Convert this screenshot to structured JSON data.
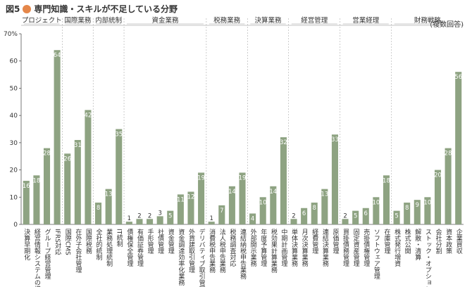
{
  "chart_data": {
    "type": "bar",
    "figure_label": "図5",
    "title": "専門知識・スキルが不足している分野",
    "note": "(複数回答)",
    "ylim": [
      0,
      70
    ],
    "yticks": [
      0,
      10,
      20,
      30,
      40,
      50,
      60,
      70
    ],
    "ytick_labels": [
      "0",
      "10",
      "20",
      "30",
      "40",
      "50",
      "60",
      "70%"
    ],
    "bar_color": "#8ea382",
    "groups": [
      {
        "name": "プロジェクト",
        "categories": [
          "決算早期化",
          "経営情報システムの構築",
          "グループ経営管理",
          "IFRS対応"
        ],
        "values": [
          16,
          18,
          28,
          64
        ]
      },
      {
        "name": "国際業務",
        "categories": [
          "国際CMS",
          "在外子会社管理",
          "国際税務"
        ],
        "values": [
          26,
          31,
          42
        ]
      },
      {
        "name": "内部統制",
        "categories": [
          "全社的統制",
          "業務処理統制",
          "IT統制"
        ],
        "values": [
          8,
          13,
          35
        ]
      },
      {
        "name": "資金業務",
        "categories": [
          "債権保全管理",
          "有価証券管理",
          "手形管理",
          "社債管理",
          "資金管理",
          "資金調達効率化業務",
          "外貨建取引管理",
          "デリバティブ取引管理"
        ],
        "values": [
          1,
          2,
          2,
          3,
          5,
          11,
          12,
          19
        ]
      },
      {
        "name": "税務業務",
        "categories": [
          "消費税申告業務",
          "法人税申告業務",
          "税務調査対応",
          "連結納税申告業務"
        ],
        "values": [
          1,
          7,
          14,
          19
        ]
      },
      {
        "name": "決算業務",
        "categories": [
          "外部開示業務",
          "年度予算管理",
          "税効果計算業務",
          "中期計画管理"
        ],
        "values": [
          4,
          10,
          14,
          32
        ]
      },
      {
        "name": "経営管理",
        "categories": [
          "単体決算業務",
          "月次決算業務",
          "経費管理",
          "連結決算業務",
          "原価管理"
        ],
        "values": [
          2,
          6,
          8,
          13,
          33
        ]
      },
      {
        "name": "営業経理",
        "categories": [
          "買掛債務管理",
          "固定資産管理",
          "売掛債権管理",
          "ソフトウェア管理",
          "在庫管理"
        ],
        "values": [
          2,
          5,
          6,
          10,
          18
        ]
      },
      {
        "name": "財務戦略",
        "categories": [
          "株式発行増資",
          "株式公開",
          "解散・清算",
          "ストック・オプション",
          "会社分割",
          "資本政策",
          "企業買収"
        ],
        "values": [
          5,
          8,
          9,
          10,
          20,
          28,
          56
        ]
      }
    ]
  }
}
